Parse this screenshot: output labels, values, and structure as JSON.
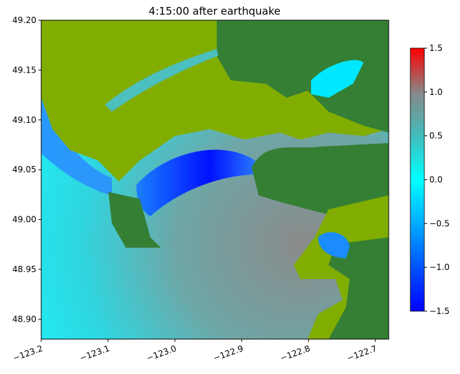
{
  "chart_data": {
    "type": "heatmap",
    "title": "4:15:00 after earthquake",
    "xlabel": "",
    "ylabel": "",
    "xlim": [
      -123.2,
      -122.68
    ],
    "ylim": [
      48.88,
      49.2
    ],
    "x_ticks": [
      "−123.2",
      "−123.1",
      "−123.0",
      "−122.9",
      "−122.8",
      "−122.7"
    ],
    "x_tick_values": [
      -123.2,
      -123.1,
      -123.0,
      -122.9,
      -122.8,
      -122.7
    ],
    "y_ticks": [
      "48.90",
      "48.95",
      "49.00",
      "49.05",
      "49.10",
      "49.15",
      "49.20"
    ],
    "y_tick_values": [
      48.9,
      48.95,
      49.0,
      49.05,
      49.1,
      49.15,
      49.2
    ],
    "grid": false,
    "colorbar": {
      "range": [
        -1.5,
        1.5
      ],
      "ticks": [
        "−1.5",
        "−1.0",
        "−0.5",
        "0.0",
        "0.5",
        "1.0",
        "1.5"
      ],
      "tick_values": [
        -1.5,
        -1.0,
        -0.5,
        0.0,
        0.5,
        1.0,
        1.5
      ],
      "colors": [
        "#0000ff",
        "#00aaff",
        "#00ffff",
        "#44bbbb",
        "#888888",
        "#b06060",
        "#ff0000"
      ]
    },
    "land_colors": {
      "high": "#357f35",
      "low": "#80ad00"
    }
  }
}
